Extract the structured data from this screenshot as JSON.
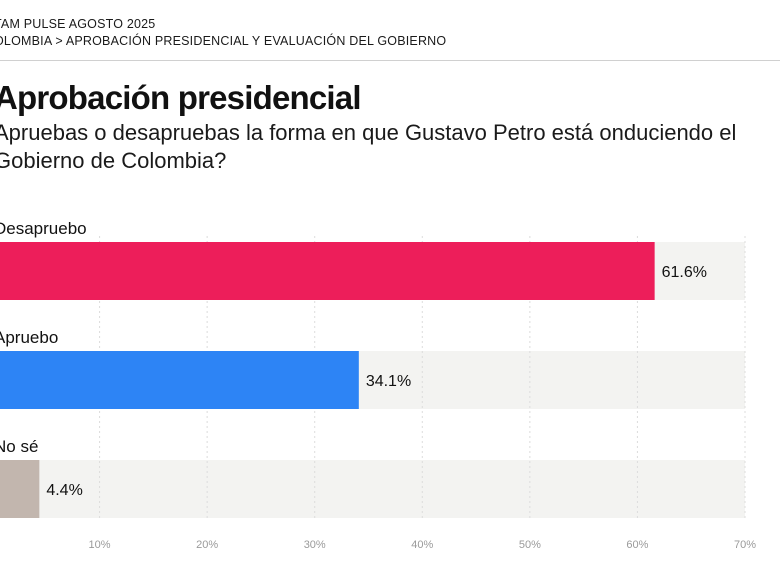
{
  "header": {
    "kicker": "TAM PULSE AGOSTO 2025",
    "breadcrumb": "OLOMBIA > APROBACIÓN PRESIDENCIAL Y EVALUACIÓN DEL GOBIERNO"
  },
  "chart_data": {
    "type": "bar",
    "orientation": "horizontal",
    "title": "Aprobación presidencial",
    "subtitle": "Apruebas o desapruebas la forma en que Gustavo Petro está onduciendo el Gobierno de Colombia?",
    "categories": [
      "Desapruebo",
      "Apruebo",
      "No sé"
    ],
    "values": [
      61.6,
      34.1,
      4.4
    ],
    "value_labels": [
      "61.6%",
      "34.1%",
      "4.4%"
    ],
    "colors": [
      "#ED1E5A",
      "#2D84F5",
      "#C2B6AE"
    ],
    "track_color": "#F3F3F1",
    "xlim": [
      0,
      70
    ],
    "ticks": [
      0,
      10,
      20,
      30,
      40,
      50,
      60,
      70
    ],
    "tick_labels": [
      "%",
      "10%",
      "20%",
      "30%",
      "40%",
      "50%",
      "60%",
      "70%"
    ],
    "grid": true
  }
}
